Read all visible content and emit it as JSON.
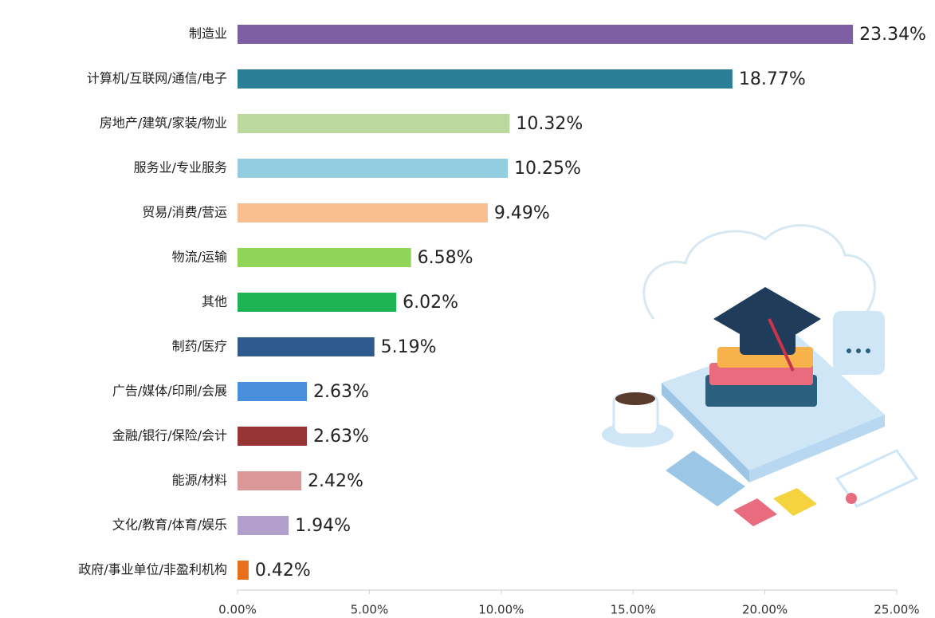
{
  "chart_data": {
    "type": "barh",
    "categories": [
      "制造业",
      "计算机/互联网/通信/电子",
      "房地产/建筑/家装/物业",
      "服务业/专业服务",
      "贸易/消费/营运",
      "物流/运输",
      "其他",
      "制药/医疗",
      "广告/媒体/印刷/会展",
      "金融/银行/保险/会计",
      "能源/材料",
      "文化/教育/体育/娱乐",
      "政府/事业单位/非盈利机构"
    ],
    "values": [
      23.34,
      18.77,
      10.32,
      10.25,
      9.49,
      6.58,
      6.02,
      5.19,
      2.63,
      2.63,
      2.42,
      1.94,
      0.42
    ],
    "value_labels": [
      "23.34%",
      "18.77%",
      "10.32%",
      "10.25%",
      "9.49%",
      "6.58%",
      "6.02%",
      "5.19%",
      "2.63%",
      "2.63%",
      "2.42%",
      "1.94%",
      "0.42%"
    ],
    "colors": [
      "#7d5fa6",
      "#2a7f96",
      "#bcd89c",
      "#92cde0",
      "#f9bf8e",
      "#8ed558",
      "#1db355",
      "#2f5a90",
      "#4a8fdc",
      "#963434",
      "#dc9898",
      "#b39fcc",
      "#e86f1c"
    ],
    "xlim": [
      0,
      25
    ],
    "xticks": [
      {
        "value": 0,
        "label": "0.00%"
      },
      {
        "value": 5,
        "label": "5.00%"
      },
      {
        "value": 10,
        "label": "10.00%"
      },
      {
        "value": 15,
        "label": "15.00%"
      },
      {
        "value": 20,
        "label": "20.00%"
      },
      {
        "value": 25,
        "label": "25.00%"
      }
    ]
  }
}
